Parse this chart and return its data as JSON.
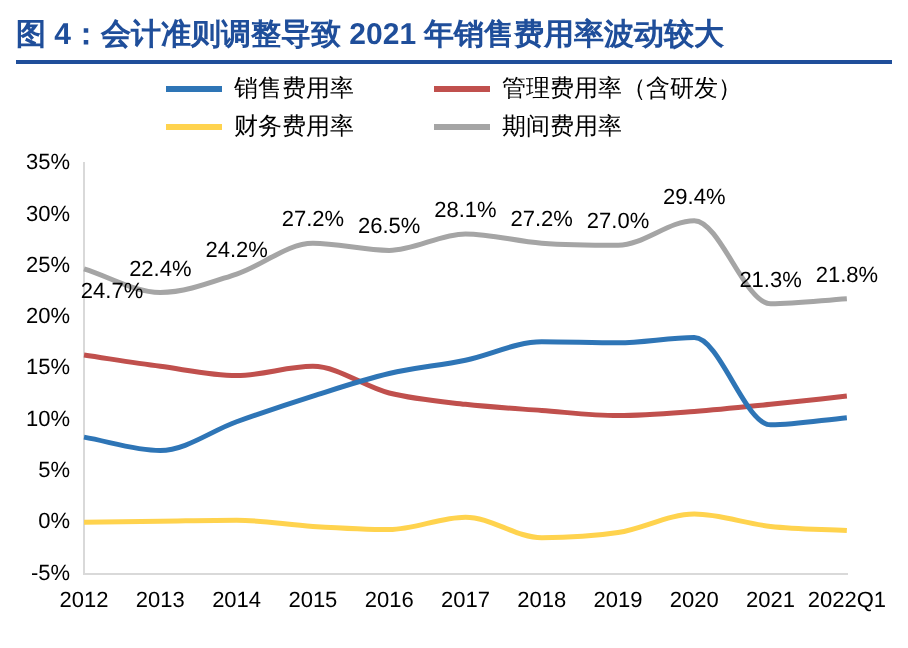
{
  "chart_data": {
    "type": "line",
    "title": "图 4：会计准则调整导致 2021 年销售费用率波动较大",
    "categories": [
      "2012",
      "2013",
      "2014",
      "2015",
      "2016",
      "2017",
      "2018",
      "2019",
      "2020",
      "2021",
      "2022Q1"
    ],
    "series": [
      {
        "name": "销售费用率",
        "color": "#2e75b6",
        "values": [
          8.3,
          7.0,
          9.8,
          12.3,
          14.5,
          15.8,
          17.6,
          17.5,
          18.0,
          9.5,
          10.2
        ]
      },
      {
        "name": "管理费用率（含研发）",
        "color": "#c0504d",
        "values": [
          16.3,
          15.2,
          14.3,
          15.2,
          12.6,
          11.5,
          10.9,
          10.4,
          10.8,
          11.5,
          12.3
        ]
      },
      {
        "name": "财务费用率",
        "color": "#ffd34e",
        "values": [
          0.0,
          0.1,
          0.2,
          -0.4,
          -0.7,
          0.5,
          -1.5,
          -1.0,
          0.8,
          -0.4,
          -0.8
        ]
      },
      {
        "name": "期间费用率",
        "color": "#a5a5a5",
        "values": [
          24.7,
          22.4,
          24.2,
          27.2,
          26.5,
          28.1,
          27.2,
          27.0,
          29.4,
          21.3,
          21.8
        ],
        "value_labels": [
          "24.7%",
          "22.4%",
          "24.2%",
          "27.2%",
          "26.5%",
          "28.1%",
          "27.2%",
          "27.0%",
          "29.4%",
          "21.3%",
          "21.8%"
        ]
      }
    ],
    "ylim": [
      -5,
      35
    ],
    "yticks": [
      {
        "value": -5,
        "label": "-5%"
      },
      {
        "value": 0,
        "label": "0%"
      },
      {
        "value": 5,
        "label": "5%"
      },
      {
        "value": 10,
        "label": "10%"
      },
      {
        "value": 15,
        "label": "15%"
      },
      {
        "value": 20,
        "label": "20%"
      },
      {
        "value": 25,
        "label": "25%"
      },
      {
        "value": 30,
        "label": "30%"
      },
      {
        "value": 35,
        "label": "35%"
      }
    ],
    "grid": false,
    "legend": "top",
    "marker": "none",
    "line_style": "solid"
  }
}
